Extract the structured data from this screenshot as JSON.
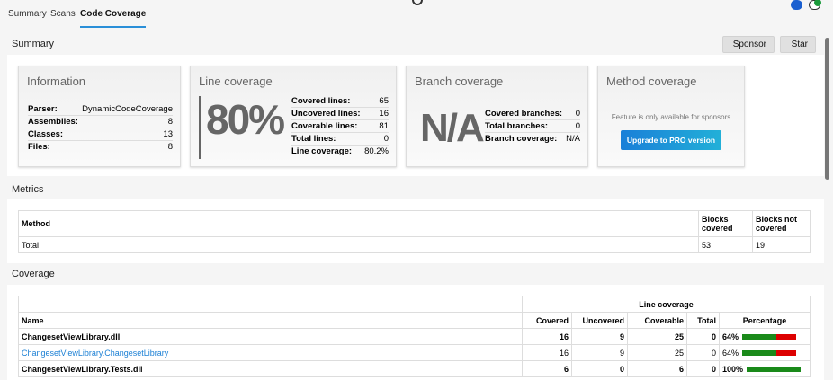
{
  "tabs": [
    {
      "label": "Summary"
    },
    {
      "label": "Scans"
    },
    {
      "label": "Code Coverage",
      "active": true
    }
  ],
  "header_icons": [
    "chat-bubble-icon",
    "add-comment-icon"
  ],
  "summary": {
    "title": "Summary",
    "sponsor_label": "Sponsor",
    "star_label": "Star",
    "information": {
      "title": "Information",
      "rows": [
        {
          "k": "Parser:",
          "v": "DynamicCodeCoverage"
        },
        {
          "k": "Assemblies:",
          "v": "8"
        },
        {
          "k": "Classes:",
          "v": "13"
        },
        {
          "k": "Files:",
          "v": "8"
        }
      ]
    },
    "line": {
      "title": "Line coverage",
      "big": "80%",
      "rows": [
        {
          "k": "Covered lines:",
          "v": "65"
        },
        {
          "k": "Uncovered lines:",
          "v": "16"
        },
        {
          "k": "Coverable lines:",
          "v": "81"
        },
        {
          "k": "Total lines:",
          "v": "0"
        },
        {
          "k": "Line coverage:",
          "v": "80.2%"
        }
      ]
    },
    "branch": {
      "title": "Branch coverage",
      "big": "N/A",
      "rows": [
        {
          "k": "Covered branches:",
          "v": "0"
        },
        {
          "k": "Total branches:",
          "v": "0"
        },
        {
          "k": "Branch coverage:",
          "v": "N/A"
        }
      ]
    },
    "method": {
      "title": "Method coverage",
      "note": "Feature is only available for sponsors",
      "button": "Upgrade to PRO version"
    }
  },
  "metrics": {
    "title": "Metrics",
    "headers": [
      "Method",
      "Blocks covered",
      "Blocks not covered"
    ],
    "rows": [
      [
        "Total",
        "53",
        "19"
      ]
    ]
  },
  "coverage": {
    "title": "Coverage",
    "group_header": "Line coverage",
    "headers": [
      "Name",
      "Covered",
      "Uncovered",
      "Coverable",
      "Total",
      "Percentage"
    ],
    "rows": [
      {
        "name": "ChangesetViewLibrary.dll",
        "covered": "16",
        "uncovered": "9",
        "coverable": "25",
        "total": "0",
        "pct": "64%",
        "pct_value": 64,
        "bold": true,
        "link": false
      },
      {
        "name": "ChangesetViewLibrary.ChangesetLibrary",
        "covered": "16",
        "uncovered": "9",
        "coverable": "25",
        "total": "0",
        "pct": "64%",
        "pct_value": 64,
        "bold": false,
        "link": true
      },
      {
        "name": "ChangesetViewLibrary.Tests.dll",
        "covered": "6",
        "uncovered": "0",
        "coverable": "6",
        "total": "0",
        "pct": "100%",
        "pct_value": 100,
        "bold": true,
        "link": false
      }
    ]
  },
  "colors": {
    "accent": "#2a8fd8",
    "covered": "#1a8a1a",
    "uncovered": "#dd0000",
    "link": "#1a7fd4"
  }
}
